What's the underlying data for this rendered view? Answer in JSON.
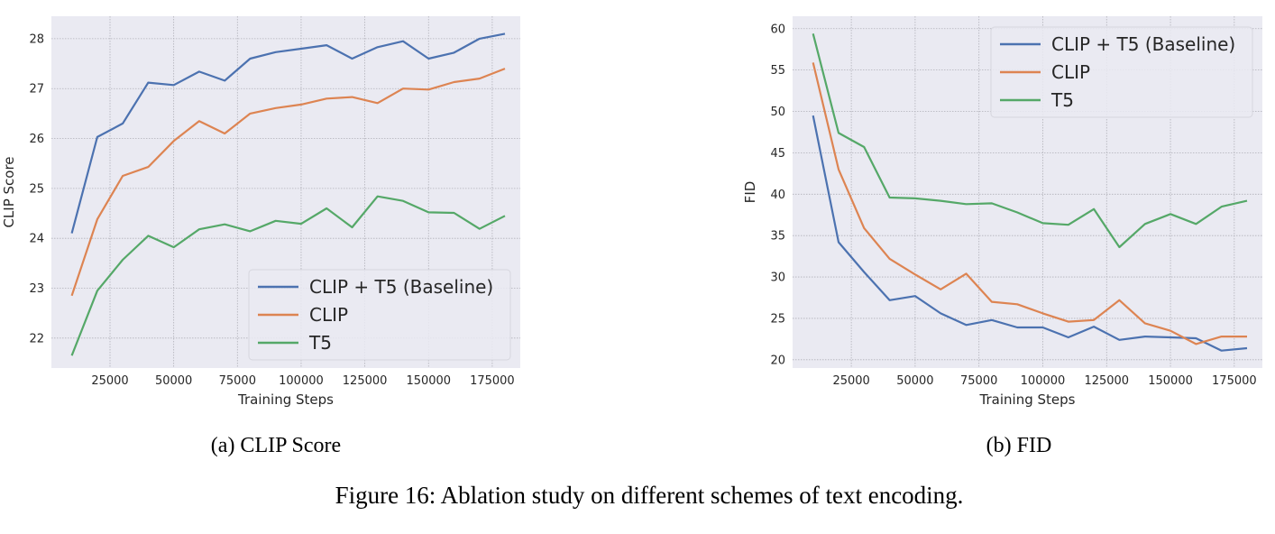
{
  "chart_data": [
    {
      "type": "line",
      "xlabel": "Training Steps",
      "ylabel": "CLIP Score",
      "xlim": [
        2000,
        186000
      ],
      "ylim": [
        21.4,
        28.45
      ],
      "xticks": [
        25000,
        50000,
        75000,
        100000,
        125000,
        150000,
        175000
      ],
      "yticks": [
        22,
        23,
        24,
        25,
        26,
        27,
        28
      ],
      "grid": true,
      "legend_position": "lower-right",
      "x": [
        10000,
        20000,
        30000,
        40000,
        50000,
        60000,
        70000,
        80000,
        90000,
        100000,
        110000,
        120000,
        130000,
        140000,
        150000,
        160000,
        170000,
        180000
      ],
      "series": [
        {
          "name": "CLIP + T5 (Baseline)",
          "color": "#4c72b0",
          "values": [
            24.1,
            26.03,
            26.3,
            27.12,
            27.07,
            27.34,
            27.16,
            27.6,
            27.73,
            27.8,
            27.87,
            27.6,
            27.83,
            27.95,
            27.6,
            27.72,
            28.0,
            28.1
          ]
        },
        {
          "name": "CLIP",
          "color": "#dd8452",
          "values": [
            22.85,
            24.38,
            25.25,
            25.43,
            25.95,
            26.35,
            26.1,
            26.5,
            26.61,
            26.68,
            26.8,
            26.83,
            26.71,
            27.0,
            26.98,
            27.13,
            27.2,
            27.4
          ]
        },
        {
          "name": "T5",
          "color": "#55a868",
          "values": [
            21.65,
            22.95,
            23.57,
            24.05,
            23.82,
            24.18,
            24.28,
            24.14,
            24.35,
            24.29,
            24.6,
            24.22,
            24.84,
            24.75,
            24.52,
            24.51,
            24.19,
            24.45
          ]
        }
      ]
    },
    {
      "type": "line",
      "xlabel": "Training Steps",
      "ylabel": "FID",
      "xlim": [
        2000,
        186000
      ],
      "ylim": [
        19,
        61.5
      ],
      "xticks": [
        25000,
        50000,
        75000,
        100000,
        125000,
        150000,
        175000
      ],
      "yticks": [
        20,
        25,
        30,
        35,
        40,
        45,
        50,
        55,
        60
      ],
      "grid": true,
      "legend_position": "top-right",
      "x": [
        10000,
        20000,
        30000,
        40000,
        50000,
        60000,
        70000,
        80000,
        90000,
        100000,
        110000,
        120000,
        130000,
        140000,
        150000,
        160000,
        170000,
        180000
      ],
      "series": [
        {
          "name": "CLIP + T5 (Baseline)",
          "color": "#4c72b0",
          "values": [
            49.5,
            34.2,
            30.6,
            27.2,
            27.7,
            25.6,
            24.2,
            24.8,
            23.9,
            23.9,
            22.7,
            24.0,
            22.4,
            22.8,
            22.7,
            22.6,
            21.1,
            21.4
          ]
        },
        {
          "name": "CLIP",
          "color": "#dd8452",
          "values": [
            55.9,
            43.0,
            35.9,
            32.2,
            30.3,
            28.5,
            30.4,
            27.0,
            26.7,
            25.6,
            24.6,
            24.8,
            27.2,
            24.4,
            23.5,
            21.9,
            22.8,
            22.8
          ]
        },
        {
          "name": "T5",
          "color": "#55a868",
          "values": [
            59.4,
            47.4,
            45.7,
            39.6,
            39.5,
            39.2,
            38.8,
            38.9,
            37.8,
            36.5,
            36.3,
            38.2,
            33.6,
            36.4,
            37.6,
            36.4,
            38.5,
            39.2
          ]
        }
      ]
    }
  ],
  "captions": {
    "sub_a": "(a) CLIP Score",
    "sub_b": "(b) FID",
    "figure": "Figure 16: Ablation study on different schemes of text encoding."
  }
}
